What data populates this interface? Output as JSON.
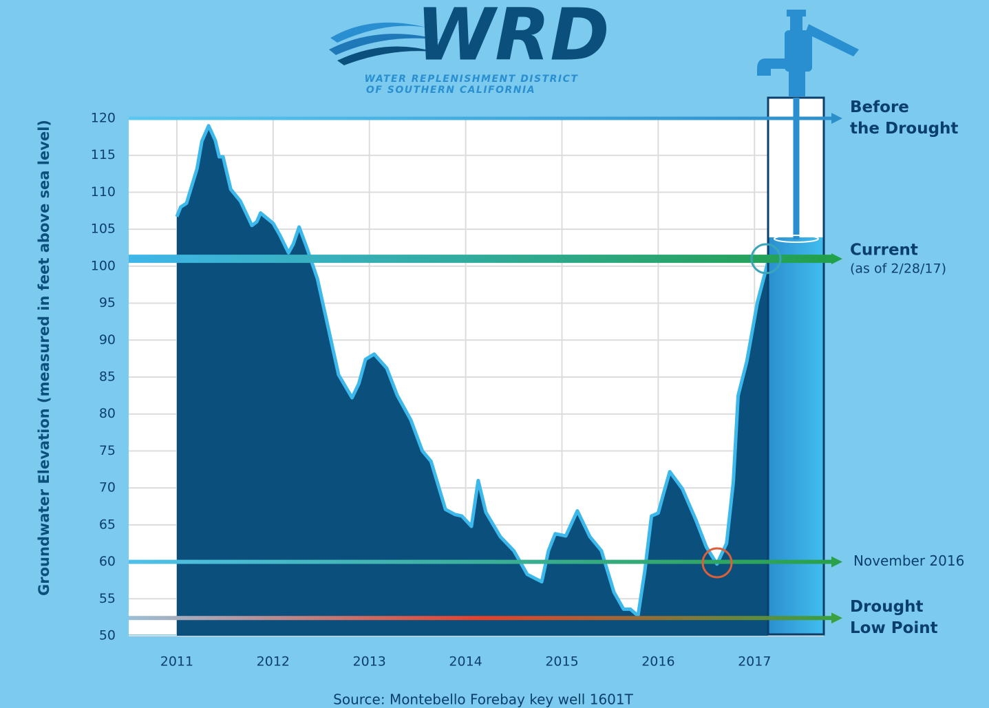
{
  "header": {
    "logo": "WRD",
    "subtitle": [
      "WATER REPLENISHMENT DISTRICT",
      "OF SOUTHERN CALIFORNIA"
    ]
  },
  "chart_data": {
    "type": "area",
    "y_label": "Groundwater Elevation (measured in feet above sea level)",
    "source": "Source: Montebello Forebay key well 1601T",
    "x": [
      2011.0,
      2011.04,
      2011.1,
      2011.21,
      2011.26,
      2011.33,
      2011.4,
      2011.44,
      2011.48,
      2011.56,
      2011.66,
      2011.78,
      2011.83,
      2011.87,
      2012.0,
      2012.07,
      2012.16,
      2012.21,
      2012.27,
      2012.35,
      2012.46,
      2012.57,
      2012.68,
      2012.82,
      2012.89,
      2012.96,
      2013.05,
      2013.18,
      2013.29,
      2013.43,
      2013.55,
      2013.64,
      2013.79,
      2013.89,
      2013.96,
      2014.06,
      2014.13,
      2014.21,
      2014.36,
      2014.5,
      2014.64,
      2014.79,
      2014.86,
      2014.93,
      2015.04,
      2015.16,
      2015.29,
      2015.41,
      2015.54,
      2015.64,
      2015.71,
      2015.79,
      2015.86,
      2015.93,
      2016.0,
      2016.05,
      2016.12,
      2016.25,
      2016.39,
      2016.5,
      2016.61,
      2016.71,
      2016.78,
      2016.83,
      2016.92,
      2017.03,
      2017.14
    ],
    "values": [
      106.7,
      108,
      108.5,
      113.2,
      116.9,
      119,
      117,
      114.8,
      114.8,
      110.4,
      108.8,
      105.5,
      106,
      107.2,
      105.8,
      104.2,
      101.8,
      103,
      105.3,
      102.5,
      98.3,
      91.8,
      85.3,
      82.2,
      84.1,
      87.4,
      88.1,
      86.2,
      82.5,
      79.2,
      75,
      73.6,
      67.1,
      66.4,
      66.2,
      64.8,
      71,
      66.7,
      63.4,
      61.5,
      58.3,
      57.3,
      61.5,
      63.8,
      63.5,
      66.9,
      63.4,
      61.5,
      55.9,
      53.6,
      53.6,
      52.7,
      58.7,
      66.2,
      66.6,
      69,
      72.2,
      69.9,
      65.7,
      62,
      59.7,
      62.5,
      70.8,
      82.5,
      87.1,
      95.1,
      100.6
    ],
    "color": "#0b4f7c",
    "line_color": "#3db8ea",
    "xlim": [
      2010.5,
      2017.72
    ],
    "xticks": [
      2011,
      2012,
      2013,
      2014,
      2015,
      2016,
      2017
    ],
    "ylim": [
      50,
      120
    ],
    "yticks": [
      50,
      55,
      60,
      65,
      70,
      75,
      80,
      85,
      90,
      95,
      100,
      105,
      110,
      115,
      120
    ],
    "grid": true,
    "reference_lines": [
      {
        "value": 120,
        "label": [
          "Before",
          "the Drought"
        ],
        "bold": true,
        "colors": [
          "#5ac8f0",
          "#2b8fcc"
        ]
      },
      {
        "value": 101,
        "label": [
          "Current"
        ],
        "note": "(as of 2/28/17)",
        "bold": true,
        "colors": [
          "#3fb6ea",
          "#22a04a"
        ]
      },
      {
        "value": 60,
        "label": [
          "November 2016"
        ],
        "bold": false,
        "colors": [
          "#4fc0ea",
          "#29a04a"
        ]
      },
      {
        "value": 52.4,
        "label": [
          "Drought",
          "Low Point"
        ],
        "bold": true,
        "colors": [
          "#9bbfd6",
          "#e8402a",
          "#3aa040"
        ]
      }
    ]
  }
}
